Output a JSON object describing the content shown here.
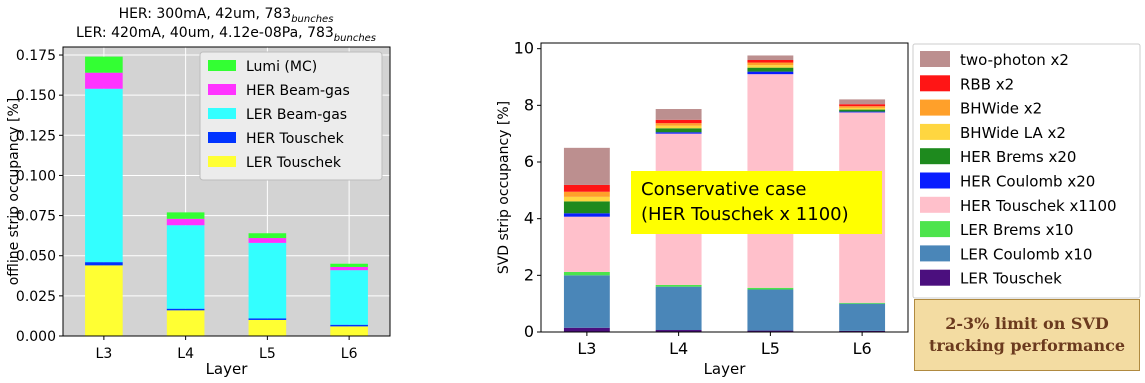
{
  "chart_data": [
    {
      "type": "bar",
      "stacked": true,
      "title_lines": [
        {
          "text": "HER: 300mA, 42um, 783",
          "sub": "bunches"
        },
        {
          "text": "LER: 420mA, 40um, 4.12e-08Pa, 783",
          "sub": "bunches"
        }
      ],
      "xlabel": "Layer",
      "ylabel": "offline strip occupancy [%]",
      "ylim": [
        0,
        0.18
      ],
      "yticks": [
        0.0,
        0.025,
        0.05,
        0.075,
        0.1,
        0.125,
        0.15,
        0.175
      ],
      "ytick_labels": [
        "0.000",
        "0.025",
        "0.050",
        "0.075",
        "0.100",
        "0.125",
        "0.150",
        "0.175"
      ],
      "categories": [
        "L3",
        "L4",
        "L5",
        "L6"
      ],
      "background": "#d3d3d3",
      "grid": true,
      "legend_position": "top-right",
      "series": [
        {
          "name": "LER Touschek",
          "color": "#ffff33",
          "values": [
            0.044,
            0.016,
            0.01,
            0.006
          ]
        },
        {
          "name": "HER Touschek",
          "color": "#0033ff",
          "values": [
            0.002,
            0.001,
            0.001,
            0.001
          ]
        },
        {
          "name": "LER Beam-gas",
          "color": "#33ffff",
          "values": [
            0.108,
            0.052,
            0.047,
            0.034
          ]
        },
        {
          "name": "HER Beam-gas",
          "color": "#ff33ff",
          "values": [
            0.01,
            0.004,
            0.003,
            0.002
          ]
        },
        {
          "name": "Lumi (MC)",
          "color": "#33ff33",
          "values": [
            0.01,
            0.004,
            0.003,
            0.002
          ]
        }
      ]
    },
    {
      "type": "bar",
      "stacked": true,
      "xlabel": "Layer",
      "ylabel": "SVD strip occupancy [%]",
      "ylim": [
        0,
        10.2
      ],
      "yticks": [
        0,
        2,
        4,
        6,
        8,
        10
      ],
      "ytick_labels": [
        "0",
        "2",
        "4",
        "6",
        "8",
        "10"
      ],
      "categories": [
        "L3",
        "L4",
        "L5",
        "L6"
      ],
      "background": "#ffffff",
      "grid": false,
      "legend_position": "right",
      "series": [
        {
          "name": "LER Touschek",
          "color": "#4b0f7e",
          "values": [
            0.15,
            0.07,
            0.05,
            0.04
          ]
        },
        {
          "name": "LER Coulomb x10",
          "color": "#4a86b8",
          "values": [
            1.85,
            1.53,
            1.45,
            0.96
          ]
        },
        {
          "name": "LER Brems x10",
          "color": "#4ce44c",
          "values": [
            0.12,
            0.06,
            0.06,
            0.03
          ]
        },
        {
          "name": "HER Touschek x1100",
          "color": "#ffc0cb",
          "values": [
            1.95,
            5.34,
            7.54,
            6.72
          ]
        },
        {
          "name": "HER Coulomb x20",
          "color": "#0a1eff",
          "values": [
            0.12,
            0.05,
            0.09,
            0.03
          ]
        },
        {
          "name": "HER Brems x20",
          "color": "#1e8a1e",
          "values": [
            0.42,
            0.14,
            0.14,
            0.07
          ]
        },
        {
          "name": "BHWide LA x2",
          "color": "#ffd640",
          "values": [
            0.16,
            0.09,
            0.09,
            0.06
          ]
        },
        {
          "name": "BHWide x2",
          "color": "#ffa02a",
          "values": [
            0.18,
            0.09,
            0.09,
            0.06
          ]
        },
        {
          "name": "RBB x2",
          "color": "#ff1515",
          "values": [
            0.24,
            0.12,
            0.09,
            0.07
          ]
        },
        {
          "name": "two-photon x2",
          "color": "#bc8f8f",
          "values": [
            1.31,
            0.38,
            0.16,
            0.17
          ]
        }
      ],
      "legend_order": [
        "two-photon x2",
        "RBB x2",
        "BHWide x2",
        "BHWide LA x2",
        "HER Brems x20",
        "HER Coulomb x20",
        "HER Touschek x1100",
        "LER Brems x10",
        "LER Coulomb x10",
        "LER Touschek"
      ],
      "annotation": {
        "lines": [
          "Conservative case",
          "(HER Touschek x 1100)"
        ],
        "background": "#ffff00"
      }
    }
  ],
  "limit_box": {
    "line1": "2-3% limit on SVD",
    "line2": "tracking performance"
  }
}
